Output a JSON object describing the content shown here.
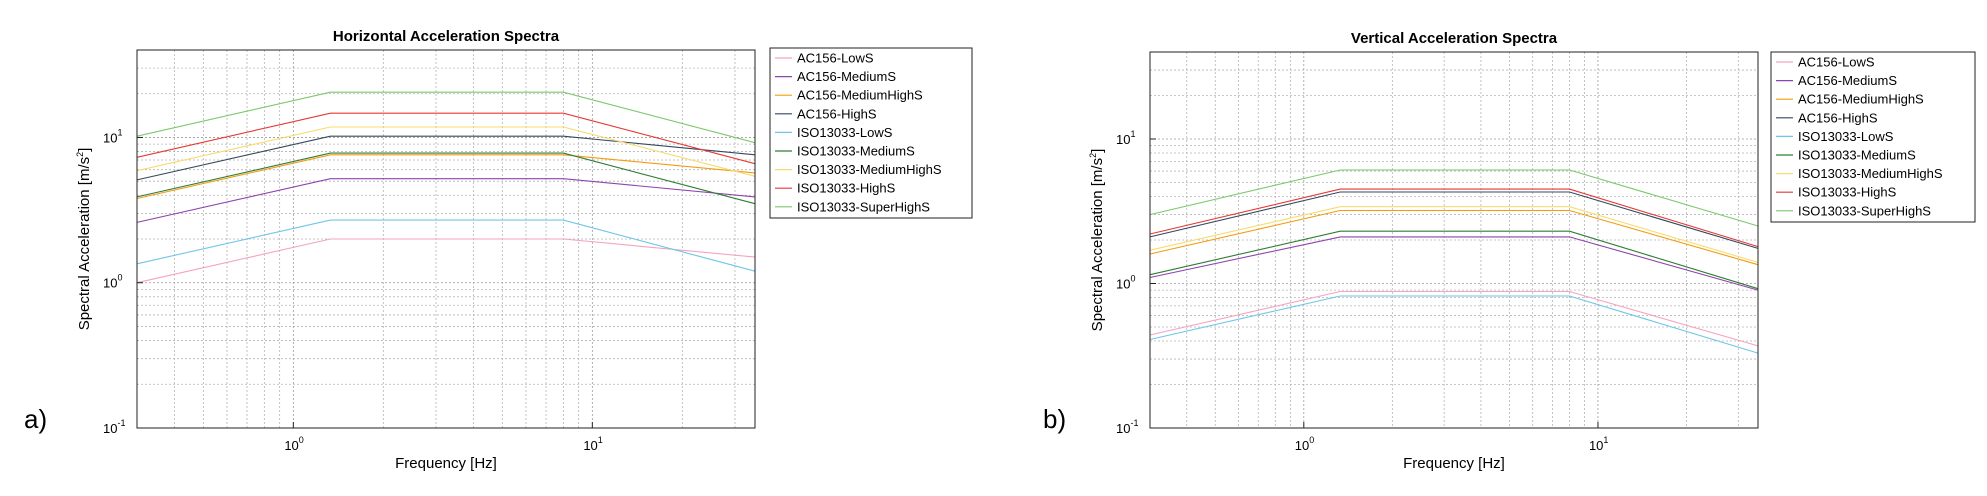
{
  "colors": {
    "AC156-LowS": "#f4a3c0",
    "AC156-MediumS": "#8e44ad",
    "AC156-MediumHighS": "#f39c12",
    "AC156-HighS": "#34495e",
    "ISO13033-LowS": "#6ec6e8",
    "ISO13033-MediumS": "#2e7d32",
    "ISO13033-MediumHighS": "#f7dc6f",
    "ISO13033-HighS": "#e53935",
    "ISO13033-SuperHighS": "#7cc96b"
  },
  "chart_data": [
    {
      "type": "line",
      "panel_label": "a)",
      "title": "Horizontal Acceleration Spectra",
      "xlabel": "Frequency [Hz]",
      "ylabel_base": "Spectral Acceleration [m/s",
      "ylabel_exp": "2",
      "ylabel_end": "]",
      "xscale": "log",
      "yscale": "log",
      "xlim": [
        0.3,
        35
      ],
      "ylim": [
        0.1,
        40
      ],
      "grid": true,
      "legend_position": "right-outside",
      "x_ticks": [
        {
          "base": "10",
          "exp": "0",
          "value": 1
        },
        {
          "base": "10",
          "exp": "1",
          "value": 10
        }
      ],
      "y_ticks": [
        {
          "base": "10",
          "exp": "-1",
          "value": 0.1
        },
        {
          "base": "10",
          "exp": "0",
          "value": 1
        },
        {
          "base": "10",
          "exp": "1",
          "value": 10
        }
      ],
      "x": [
        0.3,
        1.33,
        8.0,
        35
      ],
      "series": [
        {
          "name": "AC156-LowS",
          "values": [
            1.0,
            2.0,
            2.0,
            1.5
          ]
        },
        {
          "name": "AC156-MediumS",
          "values": [
            2.6,
            5.2,
            5.2,
            3.9
          ]
        },
        {
          "name": "AC156-MediumHighS",
          "values": [
            3.8,
            7.6,
            7.6,
            5.7
          ]
        },
        {
          "name": "AC156-HighS",
          "values": [
            5.1,
            10.2,
            10.2,
            7.6
          ]
        },
        {
          "name": "ISO13033-LowS",
          "values": [
            1.35,
            2.7,
            2.7,
            1.2
          ]
        },
        {
          "name": "ISO13033-MediumS",
          "values": [
            3.9,
            7.8,
            7.8,
            3.5
          ]
        },
        {
          "name": "ISO13033-MediumHighS",
          "values": [
            5.9,
            11.8,
            11.8,
            5.4
          ]
        },
        {
          "name": "ISO13033-HighS",
          "values": [
            7.3,
            14.7,
            14.7,
            6.6
          ]
        },
        {
          "name": "ISO13033-SuperHighS",
          "values": [
            10.2,
            20.5,
            20.5,
            9.2
          ]
        }
      ]
    },
    {
      "type": "line",
      "panel_label": "b)",
      "title": "Vertical Acceleration Spectra",
      "xlabel": "Frequency [Hz]",
      "ylabel_base": "Spectral Acceleration [m/s",
      "ylabel_exp": "2",
      "ylabel_end": "]",
      "xscale": "log",
      "yscale": "log",
      "xlim": [
        0.3,
        35
      ],
      "ylim": [
        0.1,
        40
      ],
      "grid": true,
      "legend_position": "right-outside",
      "x_ticks": [
        {
          "base": "10",
          "exp": "0",
          "value": 1
        },
        {
          "base": "10",
          "exp": "1",
          "value": 10
        }
      ],
      "y_ticks": [
        {
          "base": "10",
          "exp": "-1",
          "value": 0.1
        },
        {
          "base": "10",
          "exp": "0",
          "value": 1
        },
        {
          "base": "10",
          "exp": "1",
          "value": 10
        }
      ],
      "x": [
        0.3,
        1.33,
        8.0,
        35
      ],
      "series": [
        {
          "name": "AC156-LowS",
          "values": [
            0.44,
            0.88,
            0.88,
            0.37
          ]
        },
        {
          "name": "AC156-MediumS",
          "values": [
            1.1,
            2.1,
            2.1,
            0.9
          ]
        },
        {
          "name": "AC156-MediumHighS",
          "values": [
            1.6,
            3.2,
            3.2,
            1.35
          ]
        },
        {
          "name": "AC156-HighS",
          "values": [
            2.1,
            4.3,
            4.3,
            1.75
          ]
        },
        {
          "name": "ISO13033-LowS",
          "values": [
            0.41,
            0.82,
            0.82,
            0.33
          ]
        },
        {
          "name": "ISO13033-MediumS",
          "values": [
            1.15,
            2.3,
            2.3,
            0.92
          ]
        },
        {
          "name": "ISO13033-MediumHighS",
          "values": [
            1.7,
            3.4,
            3.4,
            1.4
          ]
        },
        {
          "name": "ISO13033-HighS",
          "values": [
            2.2,
            4.5,
            4.5,
            1.8
          ]
        },
        {
          "name": "ISO13033-SuperHighS",
          "values": [
            3.0,
            6.1,
            6.1,
            2.5
          ]
        }
      ]
    }
  ]
}
